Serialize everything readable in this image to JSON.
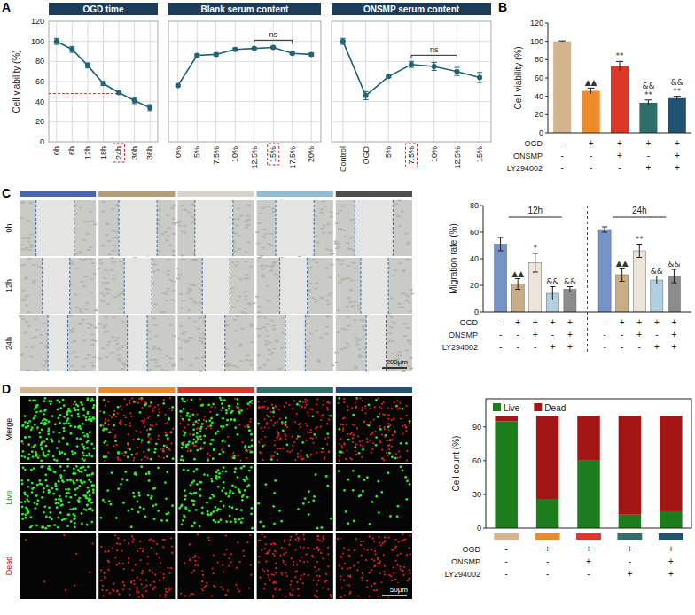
{
  "panel_labels": [
    "A",
    "B",
    "C",
    "D"
  ],
  "chart_data": [
    {
      "type": "line",
      "title": "OGD time",
      "ylabel": "Cell viability (%)",
      "categories": [
        "0h",
        "6h",
        "12h",
        "18h",
        "24h",
        "30h",
        "36h"
      ],
      "values": [
        100,
        92,
        76,
        58,
        49,
        41,
        34
      ],
      "errors": [
        3,
        3,
        2.5,
        2,
        1.5,
        3,
        3
      ],
      "color": "#1f6477",
      "marker": "circle",
      "ylim": [
        0,
        120
      ],
      "yticks": [
        0,
        20,
        40,
        60,
        80,
        100,
        120
      ],
      "grid": true,
      "highlight": "24h",
      "reference_value": 48
    },
    {
      "type": "line",
      "title": "Blank serum content",
      "categories": [
        "0%",
        "5%",
        "7.5%",
        "10%",
        "12.5%",
        "15%",
        "17.5%",
        "20%"
      ],
      "values": [
        56,
        86,
        87,
        92,
        93,
        94,
        88,
        87
      ],
      "errors": [
        1,
        1.5,
        1.5,
        1.5,
        1,
        1,
        1,
        1.5
      ],
      "color": "#1f6477",
      "marker": "circle",
      "ylim": [
        0,
        120
      ],
      "yticks": [
        0,
        20,
        40,
        60,
        80,
        100,
        120
      ],
      "grid": true,
      "tick_labels": "x",
      "highlight": "15%",
      "annotations": [
        {
          "text": "ns",
          "span": [
            "12.5%",
            "17.5%"
          ]
        }
      ]
    },
    {
      "type": "line",
      "title": "ONSMP serum content",
      "categories": [
        "Control",
        "OGD",
        "5%",
        "7.5%",
        "10%",
        "12.5%",
        "15%"
      ],
      "values": [
        100,
        46,
        65,
        77,
        75,
        70,
        64
      ],
      "errors": [
        3,
        4,
        1,
        3,
        4,
        4,
        5
      ],
      "color": "#1f6477",
      "marker": "circle",
      "ylim": [
        0,
        120
      ],
      "yticks": [
        0,
        20,
        40,
        60,
        80,
        100,
        120
      ],
      "grid": true,
      "tick_labels": "x",
      "highlight": "7.5%",
      "annotations": [
        {
          "text": "ns",
          "span": [
            "7.5%",
            "12.5%"
          ]
        }
      ]
    },
    {
      "type": "bar",
      "ylabel": "Cell viability (%)",
      "categories": [
        null,
        null,
        null,
        null,
        null
      ],
      "values": [
        100,
        46,
        73,
        33,
        38
      ],
      "errors": [
        0.5,
        3,
        5,
        3,
        2
      ],
      "colors": [
        "#d4b48c",
        "#ef8a2a",
        "#d9382b",
        "#2f6f6b",
        "#1e5470"
      ],
      "ylim": [
        0,
        120
      ],
      "yticks": [
        0,
        20,
        40,
        60,
        80,
        100,
        120
      ],
      "significance": [
        [],
        [
          "▲▲"
        ],
        [
          "**"
        ],
        [
          "&&",
          "**"
        ],
        [
          "&&",
          "**"
        ]
      ],
      "conditions": [
        {
          "label": "OGD",
          "signs": [
            "-",
            "+",
            "+",
            "+",
            "+"
          ]
        },
        {
          "label": "ONSMP",
          "signs": [
            "-",
            "-",
            "+",
            "-",
            "+"
          ]
        },
        {
          "label": "LY294002",
          "signs": [
            "-",
            "-",
            "-",
            "+",
            "+"
          ]
        }
      ]
    },
    {
      "type": "bar",
      "ylabel": "Migration rate (%)",
      "groups": [
        {
          "label": "12h",
          "values": [
            51,
            21,
            37,
            14,
            17
          ],
          "errors": [
            5,
            4,
            7,
            5,
            2
          ],
          "significance": [
            [],
            [
              "▲▲"
            ],
            [
              "*"
            ],
            [
              "&&"
            ],
            [
              "&&"
            ]
          ]
        },
        {
          "label": "24h",
          "values": [
            62,
            28,
            46,
            24,
            27
          ],
          "errors": [
            2,
            5,
            5,
            3,
            5
          ],
          "significance": [
            [],
            [
              "▲▲"
            ],
            [
              "**"
            ],
            [
              "&&"
            ],
            [
              "&&"
            ]
          ]
        }
      ],
      "colors": [
        "#7592c9",
        "#c9ad85",
        "#ebe5da",
        "#b0cfe0",
        "#8c8c8c"
      ],
      "ylim": [
        0,
        80
      ],
      "yticks": [
        0,
        20,
        40,
        60,
        80
      ],
      "conditions": [
        {
          "label": "OGD",
          "signs": [
            "-",
            "+",
            "+",
            "+",
            "+"
          ]
        },
        {
          "label": "ONSMP",
          "signs": [
            "-",
            "-",
            "+",
            "-",
            "+"
          ]
        },
        {
          "label": "LY294002",
          "signs": [
            "-",
            "-",
            "-",
            "+",
            "+"
          ]
        }
      ]
    },
    {
      "type": "bar",
      "stacked": true,
      "ylabel": "Cell count (%)",
      "categories": [
        null,
        null,
        null,
        null,
        null
      ],
      "series": [
        {
          "name": "Live",
          "color": "#1b7d1b",
          "values": [
            95,
            26,
            60,
            12,
            15
          ]
        },
        {
          "name": "Dead",
          "color": "#a31616",
          "values": [
            5,
            74,
            40,
            88,
            85
          ]
        }
      ],
      "ylim": [
        0,
        115
      ],
      "yticks": [
        0,
        30,
        60,
        90
      ],
      "legend": "top-left",
      "condition_colors": [
        "#d4b48c",
        "#ef8a2a",
        "#d9382b",
        "#2f6f6b",
        "#1e5470"
      ],
      "conditions": [
        {
          "label": "OGD",
          "signs": [
            "-",
            "+",
            "+",
            "+",
            "+"
          ]
        },
        {
          "label": "ONSMP",
          "signs": [
            "-",
            "-",
            "+",
            "-",
            "+"
          ]
        },
        {
          "label": "LY294002",
          "signs": [
            "-",
            "-",
            "-",
            "+",
            "+"
          ]
        }
      ]
    }
  ],
  "image_panels": [
    {
      "row_labels": [
        "0h",
        "12h",
        "24h"
      ],
      "column_colors": [
        "#4a64ad",
        "#b39c78",
        "#d6d3cd",
        "#93bcd2",
        "#4f4f4f"
      ],
      "scale_bar": "200μm"
    },
    {
      "row_labels": [
        "Merge",
        "Live",
        "Dead"
      ],
      "column_colors": [
        "#d4b48c",
        "#ef8a2a",
        "#d9382b",
        "#2f6f6b",
        "#1e5470"
      ],
      "scale_bar": "50μm"
    }
  ]
}
